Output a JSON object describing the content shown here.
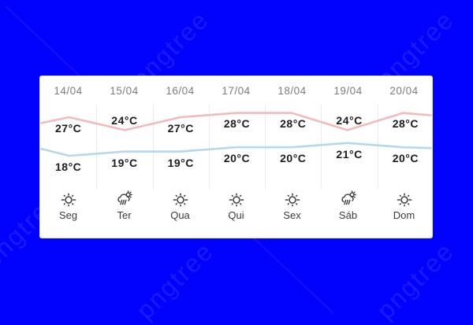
{
  "background": {
    "color": "#0101fe",
    "watermark_text": "pngtree"
  },
  "widget": {
    "unit": "°C",
    "days": [
      {
        "date": "14/04",
        "day": "Seg",
        "high": 27,
        "low": 18,
        "condition": "sunny"
      },
      {
        "date": "15/04",
        "day": "Ter",
        "high": 24,
        "low": 19,
        "condition": "rain-sun"
      },
      {
        "date": "16/04",
        "day": "Qua",
        "high": 27,
        "low": 19,
        "condition": "sunny"
      },
      {
        "date": "17/04",
        "day": "Qui",
        "high": 28,
        "low": 20,
        "condition": "sunny"
      },
      {
        "date": "18/04",
        "day": "Sex",
        "high": 28,
        "low": 20,
        "condition": "sunny"
      },
      {
        "date": "19/04",
        "day": "Sáb",
        "high": 24,
        "low": 21,
        "condition": "rain-sun"
      },
      {
        "date": "20/04",
        "day": "Dom",
        "high": 28,
        "low": 20,
        "condition": "sunny"
      }
    ],
    "colors": {
      "high_line": "#f2bbbb",
      "low_line": "#b5d7ea"
    }
  },
  "chart_data": {
    "type": "line",
    "categories": [
      "14/04",
      "15/04",
      "16/04",
      "17/04",
      "18/04",
      "19/04",
      "20/04"
    ],
    "series": [
      {
        "name": "high",
        "values": [
          27,
          24,
          27,
          28,
          28,
          24,
          28
        ],
        "color": "#f2bbbb"
      },
      {
        "name": "low",
        "values": [
          18,
          19,
          19,
          20,
          20,
          21,
          20
        ],
        "color": "#b5d7ea"
      }
    ],
    "unit": "°C",
    "ylim": [
      17,
      29
    ],
    "grid": "off",
    "legend_position": "none",
    "title": ""
  }
}
